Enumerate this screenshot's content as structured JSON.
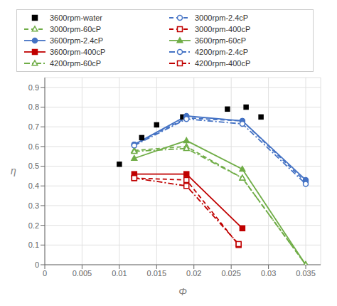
{
  "chart_data": {
    "type": "line",
    "xlabel": "Φ",
    "ylabel": "η",
    "xlim": [
      0,
      0.037
    ],
    "ylim": [
      0,
      0.95
    ],
    "xticks": [
      0,
      0.005,
      0.01,
      0.015,
      0.02,
      0.025,
      0.03,
      0.035
    ],
    "yticks": [
      0,
      0.1,
      0.2,
      0.3,
      0.4,
      0.5,
      0.6,
      0.7,
      0.8,
      0.9
    ],
    "grid": true,
    "legend": "top",
    "series": [
      {
        "name": "3600rpm-water",
        "x": [
          0.01,
          0.013,
          0.015,
          0.0185,
          0.0245,
          0.027,
          0.029
        ],
        "values": [
          0.51,
          0.645,
          0.71,
          0.75,
          0.79,
          0.8,
          0.75
        ],
        "color": "#000000",
        "line_style": "none",
        "marker": "square"
      },
      {
        "name": "3000rpm-2.4cP",
        "x": [
          0.012,
          0.019,
          0.0265,
          0.035
        ],
        "values": [
          0.61,
          0.745,
          0.73,
          0.42
        ],
        "color": "#4472C4",
        "line_style": "dashed",
        "marker": "circle-open"
      },
      {
        "name": "3000rpm-60cP",
        "x": [
          0.012,
          0.019,
          0.0265,
          0.035
        ],
        "values": [
          0.58,
          0.6,
          0.44,
          0.0
        ],
        "color": "#70AD47",
        "line_style": "dashed",
        "marker": "triangle-open"
      },
      {
        "name": "3000rpm-400cP",
        "x": [
          0.012,
          0.019,
          0.026
        ],
        "values": [
          0.44,
          0.43,
          0.1
        ],
        "color": "#C00000",
        "line_style": "dashed",
        "marker": "square-open"
      },
      {
        "name": "3600rpm-2.4cP",
        "x": [
          0.012,
          0.019,
          0.0265,
          0.035
        ],
        "values": [
          0.61,
          0.755,
          0.73,
          0.43
        ],
        "color": "#4472C4",
        "line_style": "solid",
        "marker": "circle"
      },
      {
        "name": "3600rpm-60cP",
        "x": [
          0.012,
          0.019,
          0.0265,
          0.035
        ],
        "values": [
          0.54,
          0.63,
          0.485,
          0.0
        ],
        "color": "#70AD47",
        "line_style": "solid",
        "marker": "triangle"
      },
      {
        "name": "3600rpm-400cP",
        "x": [
          0.012,
          0.019,
          0.0265
        ],
        "values": [
          0.46,
          0.46,
          0.185
        ],
        "color": "#C00000",
        "line_style": "solid",
        "marker": "square"
      },
      {
        "name": "4200rpm-2.4cP",
        "x": [
          0.012,
          0.019,
          0.0265,
          0.035
        ],
        "values": [
          0.605,
          0.74,
          0.715,
          0.41
        ],
        "color": "#4472C4",
        "line_style": "dashdot",
        "marker": "circle-open"
      },
      {
        "name": "4200rpm-60cP",
        "x": [
          0.012,
          0.019,
          0.0265,
          0.035
        ],
        "values": [
          0.575,
          0.59,
          0.44,
          0.0
        ],
        "color": "#70AD47",
        "line_style": "dashdot",
        "marker": "triangle-open"
      },
      {
        "name": "4200rpm-400cP",
        "x": [
          0.012,
          0.019,
          0.026
        ],
        "values": [
          0.44,
          0.4,
          0.105
        ],
        "color": "#C00000",
        "line_style": "dashdot",
        "marker": "square-open"
      }
    ]
  }
}
